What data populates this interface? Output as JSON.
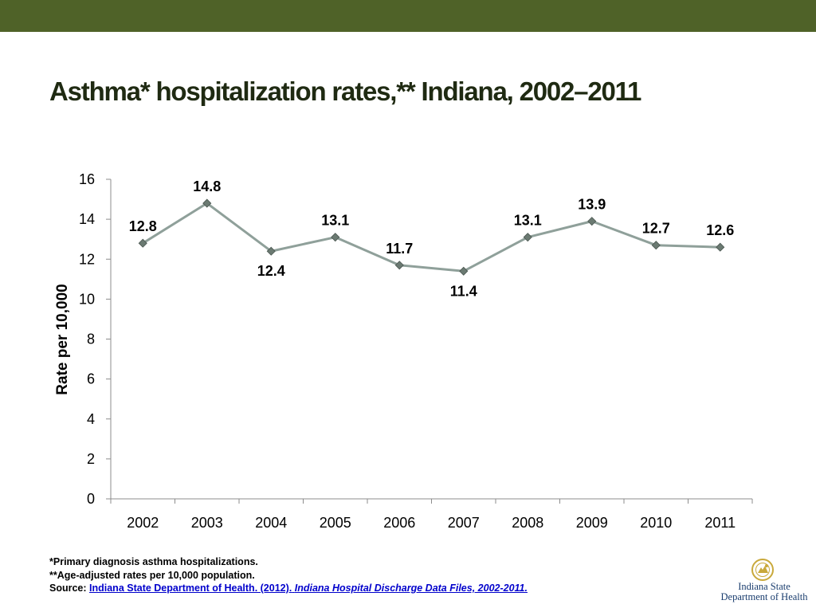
{
  "title": "Asthma* hospitalization rates,** Indiana, 2002–2011",
  "chart_data": {
    "type": "line",
    "title": "",
    "xlabel": "",
    "ylabel": "Rate per 10,000",
    "ylim": [
      0,
      16
    ],
    "yticks": [
      "0",
      "2",
      "4",
      "6",
      "8",
      "10",
      "12",
      "14",
      "16"
    ],
    "categories": [
      "2002",
      "2003",
      "2004",
      "2005",
      "2006",
      "2007",
      "2008",
      "2009",
      "2010",
      "2011"
    ],
    "series": [
      {
        "values": [
          12.8,
          14.8,
          12.4,
          13.1,
          11.7,
          11.4,
          13.1,
          13.9,
          12.7,
          12.6
        ]
      }
    ],
    "data_labels": [
      "12.8",
      "14.8",
      "12.4",
      "13.1",
      "11.7",
      "11.4",
      "13.1",
      "13.9",
      "12.7",
      "12.6"
    ],
    "grid": false,
    "legend": "none",
    "line_color": "#8fa09a",
    "marker_color": "#6b7a72"
  },
  "notes": {
    "note1": "*Primary diagnosis asthma hospitalizations.",
    "note2": "**Age-adjusted rates per 10,000 population.",
    "source_prefix": "Source: ",
    "source_link": "Indiana State Department of Health. (2012).",
    "source_space": " ",
    "source_title": "Indiana Hospital Discharge Data Files, 2002-2011."
  },
  "logo": {
    "line1": "Indiana State",
    "line2": "Department of Health"
  },
  "colors": {
    "top_bar": "#4f6228",
    "title": "#1f2a12",
    "link": "#0000cc",
    "logo_text": "#1a3d6e",
    "seal": "#c9a93b"
  }
}
